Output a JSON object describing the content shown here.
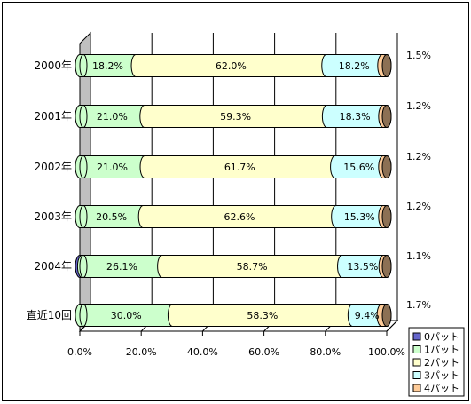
{
  "chart_data": {
    "type": "bar",
    "orientation": "horizontal",
    "stacked": "percent",
    "categories": [
      "2000年",
      "2001年",
      "2002年",
      "2003年",
      "2004年",
      "直近10回"
    ],
    "series": [
      {
        "name": "0パット",
        "color": "#6666cc",
        "values": [
          0.0,
          0.0,
          0.0,
          0.0,
          0.7,
          0.0
        ]
      },
      {
        "name": "1パット",
        "color": "#ccffcc",
        "values": [
          18.2,
          21.0,
          21.0,
          20.5,
          26.1,
          30.0
        ]
      },
      {
        "name": "2パット",
        "color": "#ffffcc",
        "values": [
          62.0,
          59.3,
          61.7,
          62.6,
          58.7,
          58.3
        ]
      },
      {
        "name": "3パット",
        "color": "#ccffff",
        "values": [
          18.2,
          18.3,
          15.6,
          15.3,
          13.5,
          9.4
        ]
      },
      {
        "name": "4パット",
        "color": "#ffcc99",
        "values": [
          1.5,
          1.2,
          1.2,
          1.2,
          1.1,
          1.7
        ]
      }
    ],
    "labels": [
      {
        "s1": "18.2%",
        "s2": "62.0%",
        "s3": "18.2%",
        "s4": "1.5%"
      },
      {
        "s1": "21.0%",
        "s2": "59.3%",
        "s3": "18.3%",
        "s4": "1.2%"
      },
      {
        "s1": "21.0%",
        "s2": "61.7%",
        "s3": "15.6%",
        "s4": "1.2%"
      },
      {
        "s1": "20.5%",
        "s2": "62.6%",
        "s3": "15.3%",
        "s4": "1.2%"
      },
      {
        "s1": "26.1%",
        "s2": "58.7%",
        "s3": "13.5%",
        "s4": "1.1%"
      },
      {
        "s1": "30.0%",
        "s2": "58.3%",
        "s3": "9.4%",
        "s4": "1.7%"
      }
    ],
    "x_ticks": [
      "0.0%",
      "20.0%",
      "40.0%",
      "60.0%",
      "80.0%",
      "100.0%"
    ],
    "xlim": [
      0,
      100
    ],
    "legend_position": "bottom-right",
    "grid": true
  }
}
